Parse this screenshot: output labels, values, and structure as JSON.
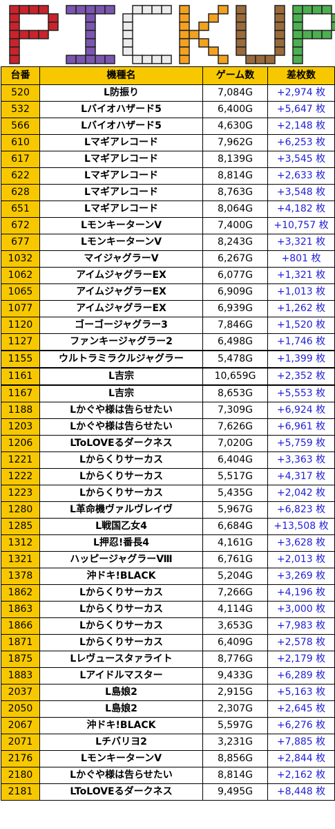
{
  "banner": {
    "title": "PICKUP",
    "letter_colors": [
      "#c9232b",
      "#7b56b0",
      "#ececec",
      "#f3a11f",
      "#9a6a3b",
      "#4caf50"
    ]
  },
  "table": {
    "headers": [
      "台番",
      "機種名",
      "ゲーム数",
      "差枚数"
    ],
    "rows": [
      {
        "no": "520",
        "name": "L防振り",
        "games": "7,084G",
        "diff": "+2,974 枚"
      },
      {
        "no": "532",
        "name": "Lバイオハザード5",
        "games": "6,400G",
        "diff": "+5,647 枚"
      },
      {
        "no": "566",
        "name": "Lバイオハザード5",
        "games": "4,630G",
        "diff": "+2,148 枚"
      },
      {
        "no": "610",
        "name": "Lマギアレコード",
        "games": "7,962G",
        "diff": "+6,253 枚"
      },
      {
        "no": "617",
        "name": "Lマギアレコード",
        "games": "8,139G",
        "diff": "+3,545 枚"
      },
      {
        "no": "622",
        "name": "Lマギアレコード",
        "games": "8,814G",
        "diff": "+2,633 枚"
      },
      {
        "no": "628",
        "name": "Lマギアレコード",
        "games": "8,763G",
        "diff": "+3,548 枚"
      },
      {
        "no": "651",
        "name": "Lマギアレコード",
        "games": "8,064G",
        "diff": "+4,182 枚"
      },
      {
        "no": "672",
        "name": "LモンキーターンⅤ",
        "games": "7,400G",
        "diff": "+10,757 枚"
      },
      {
        "no": "677",
        "name": "LモンキーターンⅤ",
        "games": "8,243G",
        "diff": "+3,321 枚"
      },
      {
        "no": "1032",
        "name": "マイジャグラーV",
        "games": "6,267G",
        "diff": "+801 枚"
      },
      {
        "no": "1062",
        "name": "アイムジャグラーEX",
        "games": "6,077G",
        "diff": "+1,321 枚"
      },
      {
        "no": "1065",
        "name": "アイムジャグラーEX",
        "games": "6,909G",
        "diff": "+1,013 枚"
      },
      {
        "no": "1077",
        "name": "アイムジャグラーEX",
        "games": "6,939G",
        "diff": "+1,262 枚"
      },
      {
        "no": "1120",
        "name": "ゴーゴージャグラー3",
        "games": "7,846G",
        "diff": "+1,520 枚"
      },
      {
        "no": "1127",
        "name": "ファンキージャグラー2",
        "games": "6,498G",
        "diff": "+1,746 枚"
      },
      {
        "no": "1155",
        "name": "ウルトラミラクルジャグラー",
        "games": "5,478G",
        "diff": "+1,399 枚"
      },
      {
        "no": "1161",
        "name": "L吉宗",
        "games": "10,659G",
        "diff": "+2,352 枚"
      },
      {
        "no": "1167",
        "name": "L吉宗",
        "games": "8,653G",
        "diff": "+5,553 枚"
      },
      {
        "no": "1188",
        "name": "Lかぐや様は告らせたい",
        "games": "7,309G",
        "diff": "+6,924 枚"
      },
      {
        "no": "1203",
        "name": "Lかぐや様は告らせたい",
        "games": "7,626G",
        "diff": "+6,961 枚"
      },
      {
        "no": "1206",
        "name": "LToLOVEるダークネス",
        "games": "7,020G",
        "diff": "+5,759 枚"
      },
      {
        "no": "1221",
        "name": "Lからくりサーカス",
        "games": "6,404G",
        "diff": "+3,363 枚"
      },
      {
        "no": "1222",
        "name": "Lからくりサーカス",
        "games": "5,517G",
        "diff": "+4,317 枚"
      },
      {
        "no": "1223",
        "name": "Lからくりサーカス",
        "games": "5,435G",
        "diff": "+2,042 枚"
      },
      {
        "no": "1280",
        "name": "L革命機ヴァルヴレイヴ",
        "games": "5,967G",
        "diff": "+6,823 枚"
      },
      {
        "no": "1285",
        "name": "L戦国乙女4",
        "games": "6,684G",
        "diff": "+13,508 枚"
      },
      {
        "no": "1312",
        "name": "L押忍!番長4",
        "games": "4,161G",
        "diff": "+3,628 枚"
      },
      {
        "no": "1321",
        "name": "ハッピージャグラーⅧ",
        "games": "6,761G",
        "diff": "+2,013 枚"
      },
      {
        "no": "1378",
        "name": "沖ドキ!BLACK",
        "games": "5,204G",
        "diff": "+3,269 枚"
      },
      {
        "no": "1862",
        "name": "Lからくりサーカス",
        "games": "7,266G",
        "diff": "+4,196 枚"
      },
      {
        "no": "1863",
        "name": "Lからくりサーカス",
        "games": "4,114G",
        "diff": "+3,000 枚"
      },
      {
        "no": "1866",
        "name": "Lからくりサーカス",
        "games": "3,653G",
        "diff": "+7,983 枚"
      },
      {
        "no": "1871",
        "name": "Lからくりサーカス",
        "games": "6,409G",
        "diff": "+2,578 枚"
      },
      {
        "no": "1875",
        "name": "Lレヴュースタァライト",
        "games": "8,776G",
        "diff": "+2,179 枚"
      },
      {
        "no": "1883",
        "name": "Lアイドルマスター",
        "games": "9,433G",
        "diff": "+6,289 枚"
      },
      {
        "no": "2037",
        "name": "L島娘2",
        "games": "2,915G",
        "diff": "+5,163 枚"
      },
      {
        "no": "2050",
        "name": "L島娘2",
        "games": "2,307G",
        "diff": "+2,645 枚"
      },
      {
        "no": "2067",
        "name": "沖ドキ!BLACK",
        "games": "5,597G",
        "diff": "+6,276 枚"
      },
      {
        "no": "2071",
        "name": "Lチバリヨ2",
        "games": "3,231G",
        "diff": "+7,885 枚"
      },
      {
        "no": "2176",
        "name": "LモンキーターンⅤ",
        "games": "8,856G",
        "diff": "+2,844 枚"
      },
      {
        "no": "2180",
        "name": "Lかぐや様は告らせたい",
        "games": "8,814G",
        "diff": "+2,162 枚"
      },
      {
        "no": "2181",
        "name": "LToLOVEるダークネス",
        "games": "9,495G",
        "diff": "+8,448 枚"
      }
    ]
  }
}
